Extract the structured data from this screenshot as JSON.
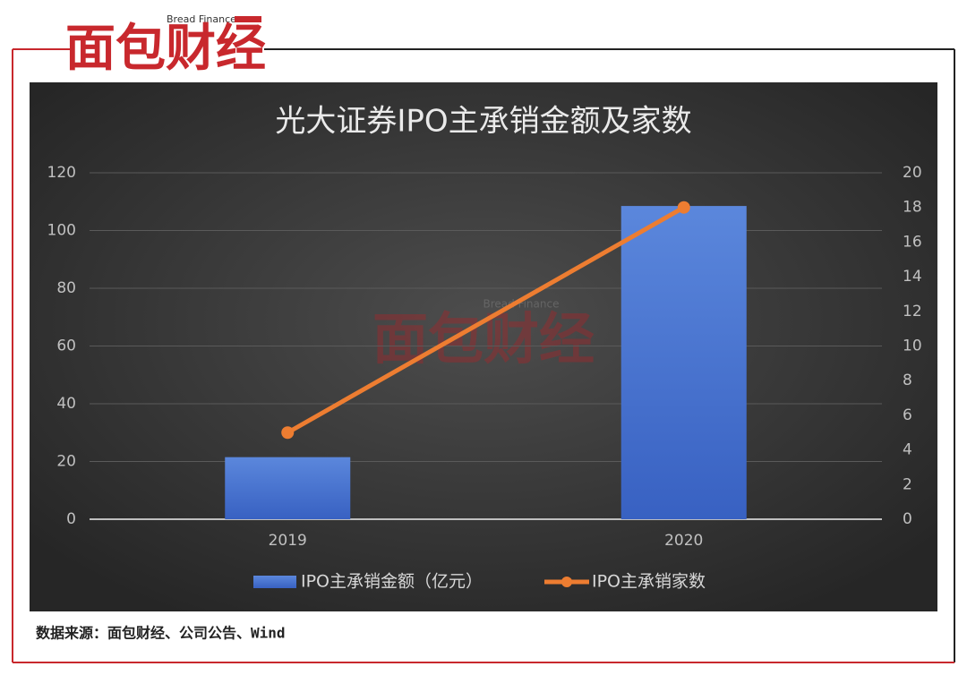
{
  "header": {
    "logo": "面包财经",
    "tagline": "Bread Finance"
  },
  "chart_data": {
    "type": "bar",
    "title": "光大证券IPO主承销金额及家数",
    "categories": [
      "2019",
      "2020"
    ],
    "series": [
      {
        "name": "IPO主承销金额（亿元）",
        "type": "bar",
        "color": "#4472c4",
        "values": [
          21.5,
          108.5
        ]
      },
      {
        "name": "IPO主承销家数",
        "type": "line",
        "color": "#ed7d31",
        "axis": "y2",
        "values": [
          5,
          18
        ]
      }
    ],
    "ylim": [
      0,
      120
    ],
    "yticks": [
      0,
      20,
      40,
      60,
      80,
      100,
      120
    ],
    "y2lim": [
      0,
      20
    ],
    "y2ticks": [
      0,
      2,
      4,
      6,
      8,
      10,
      12,
      14,
      16,
      18,
      20
    ],
    "grid": true,
    "legend": "bottom"
  },
  "source": "数据来源：面包财经、公司公告、Wind"
}
